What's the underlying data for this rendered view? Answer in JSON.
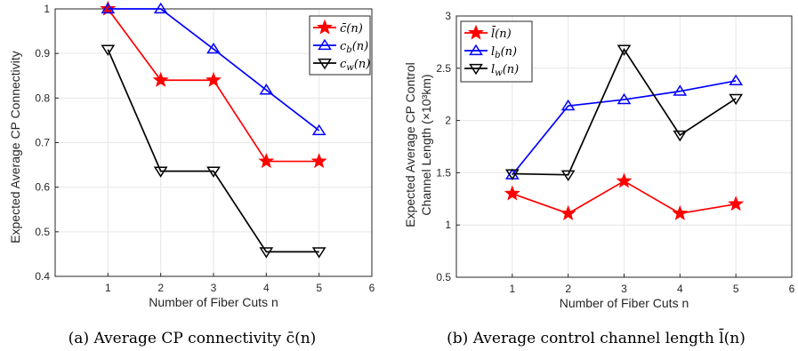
{
  "chart_data": [
    {
      "type": "line",
      "xlabel": "Number of Fiber Cuts n",
      "ylabel": "Expected Average CP Connectivity",
      "xlim": [
        0,
        6
      ],
      "ylim": [
        0.4,
        1
      ],
      "xticks": [
        "1",
        "2",
        "3",
        "4",
        "5",
        "6"
      ],
      "yticks": [
        "0.4",
        "0.5",
        "0.6",
        "0.7",
        "0.8",
        "0.9",
        "1"
      ],
      "grid": true,
      "legend": "top-right",
      "caption": "(a) Average CP connectivity c̄(n)",
      "x": [
        1,
        2,
        3,
        4,
        5
      ],
      "series": [
        {
          "name": "c̄(n)",
          "values": [
            1.0,
            0.84,
            0.84,
            0.658,
            0.658
          ],
          "color": "#ff0000",
          "marker": "star"
        },
        {
          "name": "cb(n)",
          "values": [
            1.0,
            1.0,
            0.91,
            0.818,
            0.727
          ],
          "color": "#0000ff",
          "marker": "triangle-up"
        },
        {
          "name": "cw(n)",
          "values": [
            0.909,
            0.636,
            0.636,
            0.455,
            0.455
          ],
          "color": "#000000",
          "marker": "triangle-down"
        }
      ]
    },
    {
      "type": "line",
      "xlabel": "Number of Fiber Cuts n",
      "ylabel_line1": "Expected Average CP Control",
      "ylabel_line2": "Channel Length (×10³km)",
      "xlim": [
        0,
        6
      ],
      "ylim": [
        0.5,
        3
      ],
      "xticks": [
        "1",
        "2",
        "3",
        "4",
        "5",
        "6"
      ],
      "yticks": [
        "0.5",
        "1",
        "1.5",
        "2",
        "2.5",
        "3"
      ],
      "grid": true,
      "legend": "top-left",
      "caption": "(b) Average control channel length l̄(n)",
      "x": [
        1,
        2,
        3,
        4,
        5
      ],
      "series": [
        {
          "name": "l̄(n)",
          "values": [
            1.3,
            1.11,
            1.42,
            1.11,
            1.2
          ],
          "color": "#ff0000",
          "marker": "star"
        },
        {
          "name": "lb(n)",
          "values": [
            1.48,
            2.14,
            2.2,
            2.28,
            2.38
          ],
          "color": "#0000ff",
          "marker": "triangle-up"
        },
        {
          "name": "lw(n)",
          "values": [
            1.49,
            1.48,
            2.68,
            1.86,
            2.21
          ],
          "color": "#000000",
          "marker": "triangle-down"
        }
      ]
    }
  ]
}
